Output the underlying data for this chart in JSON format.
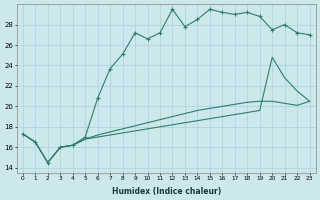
{
  "xlabel": "Humidex (Indice chaleur)",
  "background_color": "#cce8ed",
  "grid_color": "#b0d8de",
  "line_color": "#2e7d6e",
  "ylim": [
    13.5,
    30
  ],
  "xlim": [
    -0.5,
    23.5
  ],
  "yticks": [
    14,
    16,
    18,
    20,
    22,
    24,
    26,
    28
  ],
  "xticks": [
    0,
    1,
    2,
    3,
    4,
    5,
    6,
    7,
    8,
    9,
    10,
    11,
    12,
    13,
    14,
    15,
    16,
    17,
    18,
    19,
    20,
    21,
    22,
    23
  ],
  "series1_x": [
    0,
    1,
    2,
    3,
    4,
    5,
    6,
    7,
    8,
    9,
    10,
    11,
    12,
    13,
    14,
    15,
    16,
    17,
    18,
    19,
    20,
    21,
    22,
    23
  ],
  "series1_y": [
    17.3,
    16.5,
    14.5,
    16.0,
    16.2,
    17.0,
    20.8,
    23.7,
    25.1,
    27.2,
    26.6,
    27.2,
    29.5,
    27.8,
    28.5,
    29.5,
    29.2,
    29.0,
    29.2,
    28.8,
    27.5,
    28.0,
    27.2,
    27.0
  ],
  "series2_x": [
    0,
    1,
    2,
    3,
    4,
    5,
    6,
    7,
    8,
    9,
    10,
    11,
    12,
    13,
    14,
    15,
    16,
    17,
    18,
    19,
    20,
    21,
    22,
    23
  ],
  "series2_y": [
    17.3,
    16.5,
    14.5,
    16.0,
    16.2,
    16.8,
    17.2,
    17.5,
    17.8,
    18.1,
    18.4,
    18.7,
    19.0,
    19.3,
    19.6,
    19.8,
    20.0,
    20.2,
    20.4,
    20.5,
    20.5,
    20.3,
    20.1,
    20.5
  ],
  "series3_x": [
    0,
    1,
    2,
    3,
    4,
    5,
    6,
    7,
    8,
    9,
    10,
    11,
    12,
    13,
    14,
    15,
    16,
    17,
    18,
    19,
    20,
    21,
    22,
    23
  ],
  "series3_y": [
    17.3,
    16.5,
    14.5,
    16.0,
    16.2,
    16.8,
    17.0,
    17.2,
    17.4,
    17.6,
    17.8,
    18.0,
    18.2,
    18.4,
    18.6,
    18.8,
    19.0,
    19.2,
    19.4,
    19.6,
    24.8,
    22.8,
    21.5,
    20.5
  ]
}
